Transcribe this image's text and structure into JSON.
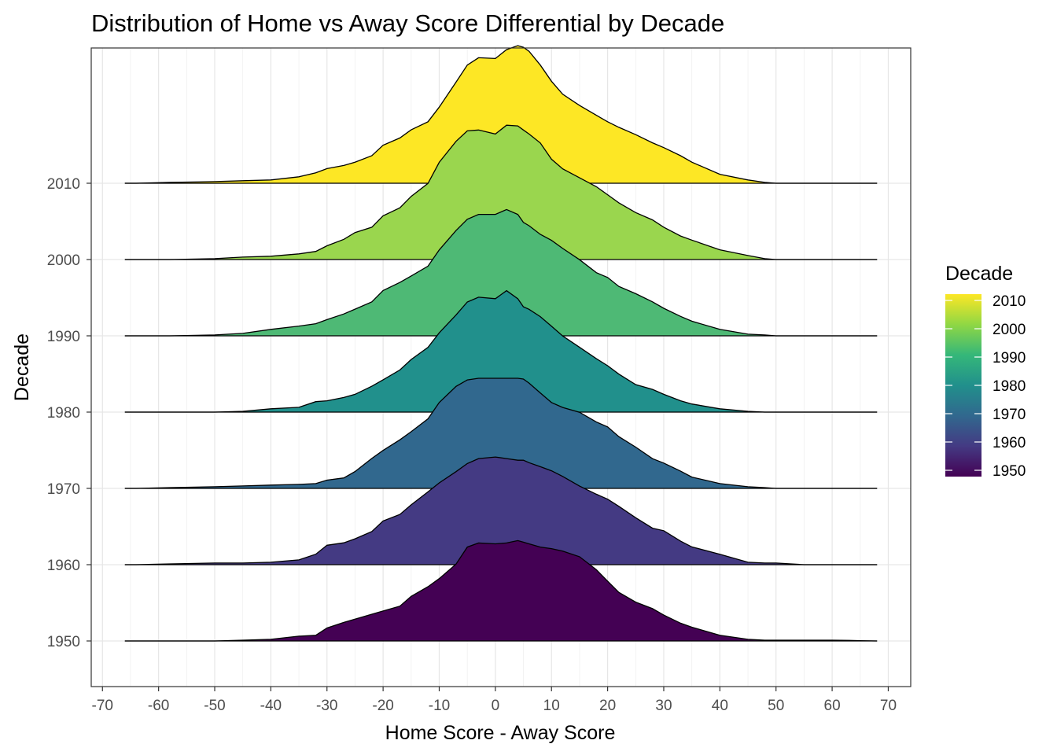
{
  "chart_data": {
    "type": "ridgeline",
    "title": "Distribution of Home vs Away Score Differential by Decade",
    "xlabel": "Home Score - Away Score",
    "ylabel": "Decade",
    "xlim": [
      -72,
      74
    ],
    "x_ticks": [
      -70,
      -60,
      -50,
      -40,
      -30,
      -20,
      -10,
      0,
      10,
      20,
      30,
      40,
      50,
      60,
      70
    ],
    "grid": true,
    "legend": {
      "title": "Decade",
      "position": "right",
      "type": "colorbar",
      "range": [
        1950,
        2010
      ],
      "labels": [
        "2010",
        "2000",
        "1990",
        "1980",
        "1970",
        "1960",
        "1950"
      ]
    },
    "x_grid": [
      -66,
      -64,
      -58,
      -50,
      -45,
      -40,
      -35,
      -32,
      -30,
      -27,
      -25,
      -22,
      -20,
      -17,
      -15,
      -12,
      -10,
      -7,
      -5,
      -3,
      0,
      2,
      4,
      5,
      6,
      8,
      10,
      12,
      15,
      18,
      20,
      22,
      25,
      28,
      30,
      33,
      35,
      40,
      45,
      48,
      50,
      55,
      60,
      63,
      65,
      68
    ],
    "series": [
      {
        "name": "1950",
        "color": "#440154",
        "density": [
          0,
          0,
          0,
          0,
          0.006,
          0.012,
          0.035,
          0.041,
          0.094,
          0.135,
          0.159,
          0.194,
          0.218,
          0.253,
          0.324,
          0.394,
          0.453,
          0.559,
          0.682,
          0.712,
          0.706,
          0.712,
          0.729,
          0.718,
          0.706,
          0.682,
          0.671,
          0.653,
          0.612,
          0.518,
          0.435,
          0.353,
          0.282,
          0.235,
          0.188,
          0.129,
          0.1,
          0.041,
          0.012,
          0.006,
          0.006,
          0.006,
          0.006,
          0.004,
          0.002,
          0
        ]
      },
      {
        "name": "1960",
        "color": "#443A83",
        "density": [
          0,
          0,
          0.006,
          0.012,
          0.012,
          0.018,
          0.035,
          0.076,
          0.141,
          0.159,
          0.188,
          0.241,
          0.318,
          0.365,
          0.435,
          0.529,
          0.594,
          0.676,
          0.735,
          0.771,
          0.782,
          0.771,
          0.759,
          0.759,
          0.741,
          0.712,
          0.682,
          0.641,
          0.571,
          0.512,
          0.476,
          0.424,
          0.341,
          0.265,
          0.247,
          0.171,
          0.129,
          0.076,
          0.018,
          0.012,
          0.012,
          0,
          0,
          0,
          0,
          0
        ]
      },
      {
        "name": "1970",
        "color": "#31688E",
        "density": [
          0,
          0,
          0.006,
          0.012,
          0.018,
          0.024,
          0.029,
          0.035,
          0.06,
          0.076,
          0.122,
          0.218,
          0.276,
          0.353,
          0.412,
          0.506,
          0.624,
          0.741,
          0.788,
          0.8,
          0.8,
          0.8,
          0.8,
          0.794,
          0.765,
          0.694,
          0.624,
          0.588,
          0.553,
          0.482,
          0.447,
          0.376,
          0.3,
          0.216,
          0.184,
          0.125,
          0.082,
          0.035,
          0.012,
          0.006,
          0,
          0,
          0,
          0,
          0,
          0
        ]
      },
      {
        "name": "1980",
        "color": "#21908C",
        "density": [
          0,
          0,
          0,
          0,
          0.006,
          0.024,
          0.035,
          0.076,
          0.082,
          0.106,
          0.129,
          0.188,
          0.235,
          0.306,
          0.382,
          0.471,
          0.576,
          0.706,
          0.8,
          0.835,
          0.824,
          0.882,
          0.824,
          0.765,
          0.747,
          0.694,
          0.624,
          0.553,
          0.471,
          0.388,
          0.337,
          0.276,
          0.2,
          0.165,
          0.129,
          0.082,
          0.059,
          0.024,
          0.006,
          0,
          0,
          0,
          0,
          0,
          0,
          0
        ]
      },
      {
        "name": "1990",
        "color": "#4EB975",
        "density": [
          0,
          0,
          0,
          0.006,
          0.018,
          0.047,
          0.071,
          0.088,
          0.118,
          0.159,
          0.194,
          0.247,
          0.329,
          0.388,
          0.435,
          0.506,
          0.624,
          0.765,
          0.847,
          0.882,
          0.882,
          0.918,
          0.882,
          0.824,
          0.8,
          0.737,
          0.694,
          0.635,
          0.553,
          0.459,
          0.424,
          0.359,
          0.306,
          0.247,
          0.2,
          0.141,
          0.106,
          0.047,
          0.012,
          0.006,
          0,
          0,
          0,
          0,
          0,
          0
        ]
      },
      {
        "name": "2000",
        "color": "#9AD64E",
        "density": [
          0,
          0,
          0,
          0.006,
          0.018,
          0.024,
          0.041,
          0.059,
          0.1,
          0.147,
          0.196,
          0.235,
          0.318,
          0.376,
          0.459,
          0.553,
          0.706,
          0.859,
          0.935,
          0.941,
          0.912,
          0.976,
          0.971,
          0.941,
          0.912,
          0.847,
          0.729,
          0.659,
          0.594,
          0.529,
          0.471,
          0.412,
          0.341,
          0.288,
          0.235,
          0.171,
          0.141,
          0.071,
          0.029,
          0.006,
          0,
          0,
          0,
          0,
          0,
          0
        ]
      },
      {
        "name": "2010",
        "color": "#FDE725",
        "density": [
          0,
          0,
          0.006,
          0.012,
          0.018,
          0.024,
          0.047,
          0.076,
          0.106,
          0.129,
          0.153,
          0.2,
          0.276,
          0.329,
          0.388,
          0.447,
          0.553,
          0.735,
          0.859,
          0.912,
          0.906,
          0.971,
          1.0,
          0.988,
          0.959,
          0.859,
          0.741,
          0.647,
          0.565,
          0.494,
          0.447,
          0.406,
          0.353,
          0.294,
          0.259,
          0.2,
          0.153,
          0.065,
          0.024,
          0.006,
          0,
          0,
          0,
          0,
          0,
          0
        ]
      }
    ]
  }
}
